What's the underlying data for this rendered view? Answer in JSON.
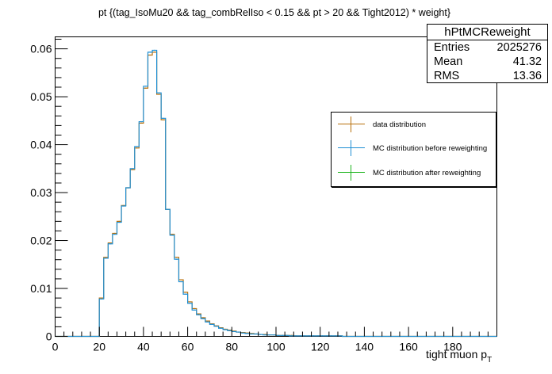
{
  "chart_data": {
    "type": "histogram",
    "title": "pt {(tag_IsoMu20 && tag_combRelIso < 0.15 && pt > 20 && Tight2012) * weight}",
    "xlabel": "tight muon p",
    "xlabel_sub": "T",
    "ylabel": "",
    "xlim": [
      0,
      200
    ],
    "ylim": [
      0,
      0.0625
    ],
    "x_ticks": [
      0,
      20,
      40,
      60,
      80,
      100,
      120,
      140,
      160,
      180
    ],
    "x_tick_labels": [
      "0",
      "20",
      "40",
      "60",
      "80",
      "100",
      "120",
      "140",
      "160",
      "180"
    ],
    "y_ticks": [
      0,
      0.01,
      0.02,
      0.03,
      0.04,
      0.05,
      0.06
    ],
    "y_tick_labels": [
      "0",
      "0.01",
      "0.02",
      "0.03",
      "0.04",
      "0.05",
      "0.06"
    ],
    "grid": false,
    "bin_width": 2,
    "bin_edges": [
      20,
      22,
      24,
      26,
      28,
      30,
      32,
      34,
      36,
      38,
      40,
      42,
      44,
      46,
      48,
      50,
      52,
      54,
      56,
      58,
      60,
      62,
      64,
      66,
      68,
      70,
      72,
      74,
      76,
      78,
      80,
      82,
      84,
      86,
      88,
      90,
      92,
      94,
      96,
      98,
      100,
      102,
      104,
      106,
      108,
      110,
      112,
      114,
      116,
      118,
      120,
      122,
      124,
      126,
      128,
      130
    ],
    "series": [
      {
        "name": "data distribution",
        "color": "#b8700c",
        "values": [
          0.008,
          0.0165,
          0.0195,
          0.0215,
          0.024,
          0.0273,
          0.031,
          0.0348,
          0.0393,
          0.0445,
          0.0518,
          0.0587,
          0.0593,
          0.0505,
          0.0452,
          0.0265,
          0.0213,
          0.0165,
          0.0118,
          0.0092,
          0.0072,
          0.0058,
          0.0047,
          0.0039,
          0.0032,
          0.0026,
          0.0022,
          0.0018,
          0.0015,
          0.0013,
          0.0011,
          0.0009,
          0.0008,
          0.0007,
          0.0006,
          0.0005,
          0.0004,
          0.0004,
          0.0003,
          0.0003,
          0.0002,
          0.0002,
          0.0002,
          0.0002,
          0.0001,
          0.0001,
          0.0001,
          0.0001,
          0.0001,
          0.0001,
          0.0001,
          0.0001,
          0.0001,
          0.0001,
          0.0001
        ]
      },
      {
        "name": "MC distribution before reweighting",
        "color": "#1f8fd4",
        "values": [
          0.0078,
          0.0163,
          0.0193,
          0.0213,
          0.0238,
          0.0272,
          0.031,
          0.035,
          0.0396,
          0.0448,
          0.0522,
          0.0593,
          0.0597,
          0.0508,
          0.0455,
          0.0265,
          0.0211,
          0.0161,
          0.0114,
          0.0088,
          0.0069,
          0.0055,
          0.0045,
          0.0037,
          0.003,
          0.0025,
          0.0021,
          0.0017,
          0.0014,
          0.0012,
          0.001,
          0.0009,
          0.0007,
          0.0006,
          0.0005,
          0.0005,
          0.0004,
          0.0003,
          0.0003,
          0.0003,
          0.0002,
          0.0002,
          0.0002,
          0.0001,
          0.0001,
          0.0001,
          0.0001,
          0.0001,
          0.0001,
          0.0001,
          0.0001,
          0.0001,
          0.0001,
          0.0001,
          0.0001
        ]
      },
      {
        "name": "MC distribution after reweighting",
        "color": "#1fb51f",
        "values": []
      }
    ],
    "legend_position": "right",
    "stats_box": {
      "name": "hPtMCReweight",
      "rows": [
        {
          "label": "Entries",
          "value": "2025276"
        },
        {
          "label": "Mean",
          "value": "41.32"
        },
        {
          "label": "RMS",
          "value": "13.36"
        }
      ],
      "position": "top-right"
    }
  }
}
